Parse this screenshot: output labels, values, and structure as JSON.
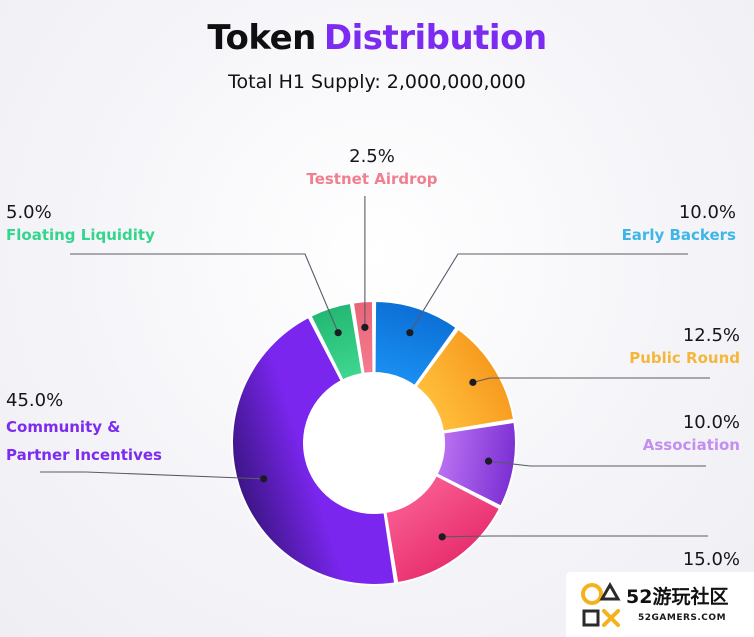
{
  "title": {
    "part1": "Token",
    "part2": "Distribution"
  },
  "subtitle": "Total H1 Supply: 2,000,000,000",
  "chart_data": {
    "type": "pie",
    "title": "Token Distribution",
    "subtitle": "Total H1 Supply: 2,000,000,000",
    "donut": true,
    "slices": [
      {
        "name": "Early Backers",
        "value": 10.0,
        "label": "10.0%",
        "color": "#1a8ef0",
        "color2": "#0b6fd6"
      },
      {
        "name": "Public Round",
        "value": 12.5,
        "label": "12.5%",
        "color": "#ffbd3a",
        "color2": "#f79a1e"
      },
      {
        "name": "Association",
        "value": 10.0,
        "label": "10.0%",
        "color": "#b86ff0",
        "color2": "#7a2fd3"
      },
      {
        "name": "",
        "value": 15.0,
        "label": "15.0%",
        "color": "#f7578e",
        "color2": "#e8306f"
      },
      {
        "name": "Community & Partner Incentives",
        "value": 45.0,
        "label": "45.0%",
        "color": "#7a26ee",
        "color2": "#3c1585"
      },
      {
        "name": "Floating Liquidity",
        "value": 5.0,
        "label": "5.0%",
        "color": "#3fd68f",
        "color2": "#22b873"
      },
      {
        "name": "Testnet Airdrop",
        "value": 2.5,
        "label": "2.5%",
        "color": "#f27c8e",
        "color2": "#ea6477"
      }
    ]
  },
  "labels": {
    "testnet_pct": "2.5%",
    "testnet_name": "Testnet Airdrop",
    "floating_pct": "5.0%",
    "floating_name": "Floating Liquidity",
    "early_pct": "10.0%",
    "early_name": "Early Backers",
    "public_pct": "12.5%",
    "public_name": "Public Round",
    "association_pct": "10.0%",
    "association_name": "Association",
    "community_pct": "45.0%",
    "community_name_line1": "Community &",
    "community_name_line2": "Partner Incentives",
    "fifteen_pct": "15.0%"
  },
  "label_colors": {
    "testnet": "#f0808f",
    "floating": "#33d68c",
    "early": "#3fb6e8",
    "public": "#f5b73a",
    "association": "#c48ef0",
    "community": "#7b2cf0"
  },
  "watermark": {
    "brand": "52游玩社区",
    "site": "52GAMERS.COM"
  }
}
